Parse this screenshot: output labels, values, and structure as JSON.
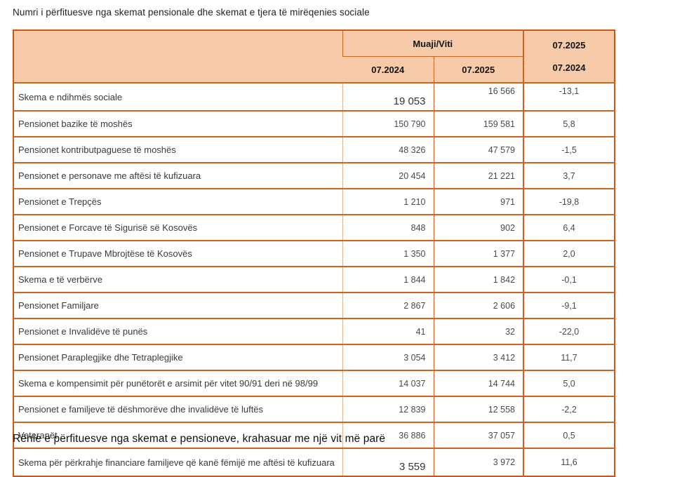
{
  "page": {
    "title": "Numri i përfituesve nga skemat pensionale dhe skemat e tjera të mirëqenies sociale",
    "caption": "Rënie e përfituesve nga skemat e pensioneve, krahasuar me një vit më parë"
  },
  "colors": {
    "header_fill": "#f7cba9",
    "border_outer": "#c5581c",
    "border_inner": "#cf6420",
    "border_light": "#e3b28b",
    "text": "#3a3a3a"
  },
  "table": {
    "header": {
      "group_label": "Muaji/Viti",
      "col_2024": "07.2024",
      "col_2025": "07.2025",
      "ratio_numerator": "07.2025",
      "ratio_denominator": "07.2024"
    },
    "rows": [
      {
        "label": "Skema e ndihmës sociale",
        "v2024": "19 053",
        "v2025": "16 566",
        "change": "-13,1"
      },
      {
        "label": "Pensionet bazike të moshës",
        "v2024": "150 790",
        "v2025": "159 581",
        "change": "5,8"
      },
      {
        "label": "Pensionet kontributpaguese të moshës",
        "v2024": "48 326",
        "v2025": "47 579",
        "change": "-1,5"
      },
      {
        "label": "Pensionet e personave me aftësi të kufizuara",
        "v2024": "20 454",
        "v2025": "21 221",
        "change": "3,7"
      },
      {
        "label": "Pensionet e Trepçës",
        "v2024": "1 210",
        "v2025": "971",
        "change": "-19,8"
      },
      {
        "label": "Pensionet e Forcave të Sigurisë së Kosovës",
        "v2024": "848",
        "v2025": "902",
        "change": "6,4"
      },
      {
        "label": "Pensionet e Trupave Mbrojtëse të Kosovës",
        "v2024": "1 350",
        "v2025": "1 377",
        "change": "2,0"
      },
      {
        "label": "Skema e të verbërve",
        "v2024": "1 844",
        "v2025": "1 842",
        "change": "-0,1"
      },
      {
        "label": "Pensionet Familjare",
        "v2024": "2 867",
        "v2025": "2 606",
        "change": "-9,1"
      },
      {
        "label": "Pensionet e Invalidëve të punës",
        "v2024": "41",
        "v2025": "32",
        "change": "-22,0"
      },
      {
        "label": "Pensionet Paraplegjike dhe Tetraplegjike",
        "v2024": "3 054",
        "v2025": "3 412",
        "change": "11,7"
      },
      {
        "label": "Skema e kompensimit për punëtorët e arsimit për vitet 90/91 deri në 98/99",
        "v2024": "14 037",
        "v2025": "14 744",
        "change": "5,0"
      },
      {
        "label": "Pensionet e familjeve të dëshmorëve dhe invalidëve të luftës",
        "v2024": "12 839",
        "v2025": "12 558",
        "change": "-2,2"
      },
      {
        "label": "Veteranët",
        "v2024": "36 886",
        "v2025": "37 057",
        "change": "0,5"
      },
      {
        "label": "Skema për përkrahje financiare familjeve që kanë fëmijë me aftësi të kufizuara",
        "v2024": "3 559",
        "v2025": "3 972",
        "change": "11,6"
      }
    ]
  }
}
